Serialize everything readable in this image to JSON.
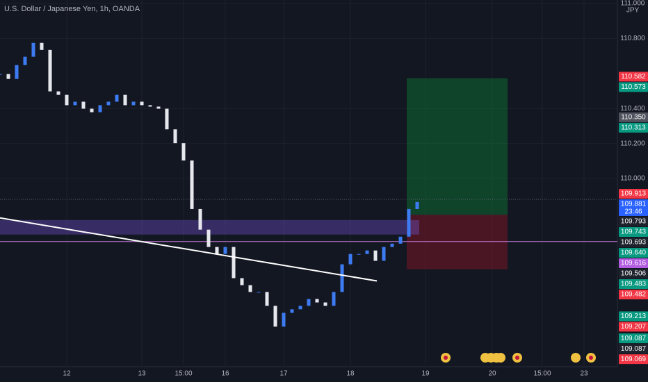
{
  "chart_data": {
    "type": "candlestick",
    "title": "U.S. Dollar / Japanese Yen, 1h, OANDA",
    "currency": "JPY",
    "ylim": [
      108.925,
      111.02
    ],
    "yticks": [
      {
        "value": 111,
        "label": "111.000"
      },
      {
        "value": 110.8,
        "label": "110.800"
      },
      {
        "value": 110.4,
        "label": "110.400"
      },
      {
        "value": 110.2,
        "label": "110.200"
      },
      {
        "value": 110,
        "label": "110.000"
      }
    ],
    "categories": [
      null,
      null,
      null,
      null,
      null,
      null,
      null,
      null,
      "12",
      null,
      null,
      null,
      null,
      null,
      null,
      null,
      null,
      "13",
      null,
      null,
      null,
      null,
      "15:00",
      null,
      null,
      null,
      null,
      "16",
      null,
      null,
      null,
      null,
      null,
      null,
      "17",
      null,
      null,
      null,
      null,
      null,
      null,
      null,
      "18",
      null,
      null,
      null,
      null,
      null,
      null,
      null,
      null,
      "19",
      null,
      null,
      null,
      null,
      null,
      null,
      null,
      "20",
      null,
      null,
      null,
      null,
      null,
      "15:00",
      null,
      null,
      null,
      null,
      "23"
    ],
    "series": [
      {
        "up_color": "#3d7bf2",
        "down_color": "#e6e8ee",
        "values": [
          110.597,
          110.569,
          110.648,
          110.696,
          110.775,
          110.735,
          110.498,
          110.478,
          110.419,
          110.439,
          110.399,
          110.379,
          110.419,
          110.439,
          110.478,
          110.419,
          110.439,
          110.419,
          110.411,
          110.399,
          110.281,
          110.202,
          110.103,
          109.826,
          109.708,
          109.609,
          109.569,
          109.609,
          109.431,
          109.391,
          109.352,
          109.352,
          109.273,
          109.154,
          109.233,
          109.253,
          109.273,
          109.312,
          109.292,
          109.273,
          109.352,
          109.51,
          109.569,
          109.569,
          109.589,
          109.53,
          109.609,
          109.628,
          109.668,
          109.826,
          109.866,
          null,
          null,
          null,
          null,
          null,
          null,
          null,
          null,
          null,
          null,
          null,
          null,
          null,
          null,
          null,
          null,
          null,
          null,
          null,
          null
        ]
      }
    ],
    "zone": [
      109.763,
      109.68
    ],
    "hline": 109.64,
    "trendline": [
      109.775,
      109.415
    ],
    "position": {
      "target": 110.573,
      "entry": 109.793,
      "stop": 109.482
    },
    "current_price": 109.881,
    "price_tags": [
      {
        "value": 110.582,
        "label": "110.582",
        "color": "#f23645"
      },
      {
        "value": 110.573,
        "label": "110.573",
        "color": "#089981"
      },
      {
        "value": 110.35,
        "label": "110.350",
        "color": "#50535e"
      },
      {
        "value": 110.313,
        "label": "110.313",
        "color": "#089981"
      },
      {
        "value": 109.913,
        "label": "109.913",
        "color": "#f23645"
      },
      {
        "value": 109.881,
        "label": "109.881",
        "color": "#2962ff",
        "countdown": "23:46"
      },
      {
        "value": 109.793,
        "label": "109.793",
        "color": "#1e222d"
      },
      {
        "value": 109.743,
        "label": "109.743",
        "color": "#089981"
      },
      {
        "value": 109.693,
        "label": "109.693",
        "color": "#1e222d"
      },
      {
        "value": 109.64,
        "label": "109.640",
        "color": "#089981"
      },
      {
        "value": 109.616,
        "label": "109.616",
        "color": "#b35ee0"
      },
      {
        "value": 109.506,
        "label": "109.506",
        "color": "#1e222d"
      },
      {
        "value": 109.483,
        "label": "109.483",
        "color": "#089981"
      },
      {
        "value": 109.482,
        "label": "109.482",
        "color": "#f23645"
      },
      {
        "value": 109.213,
        "label": "109.213",
        "color": "#089981"
      },
      {
        "value": 109.207,
        "label": "109.207",
        "color": "#f23645"
      },
      {
        "value": 109.087,
        "label": "109.087",
        "color": "#089981"
      },
      {
        "value": 109.087,
        "label": "109.087",
        "color": "#1e222d"
      },
      {
        "value": 109.069,
        "label": "109.069",
        "color": "#f23645"
      }
    ]
  }
}
